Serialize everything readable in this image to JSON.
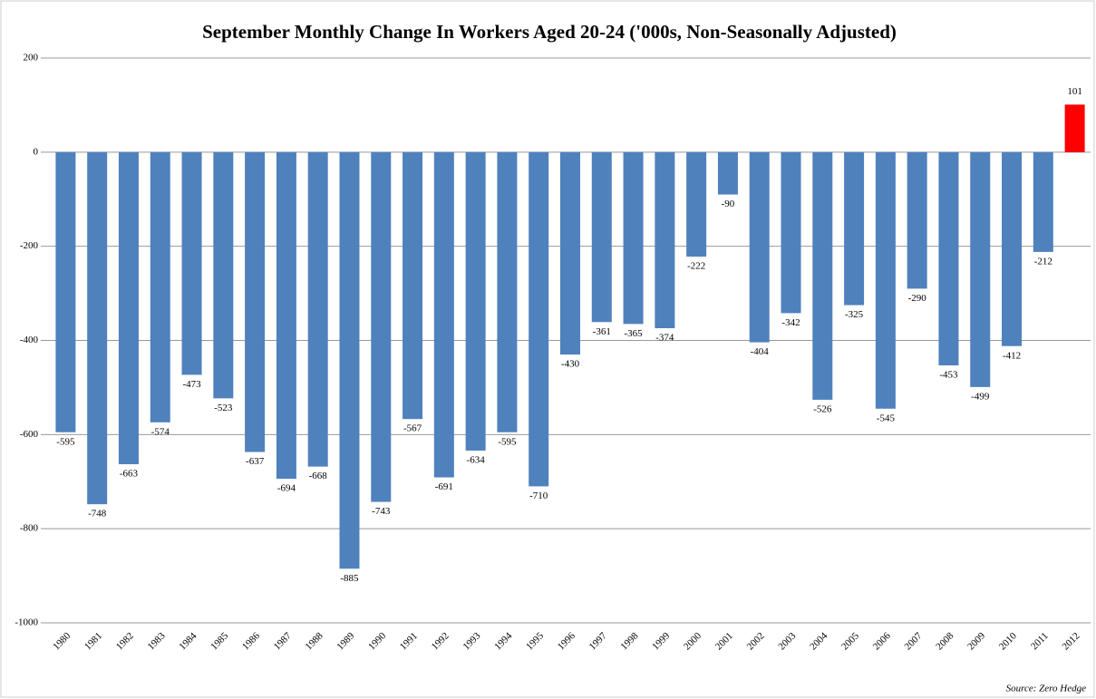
{
  "chart_data": {
    "type": "bar",
    "title": "September Monthly Change In Workers Aged 20-24 ('000s, Non-Seasonally Adjusted)",
    "source": "Source: Zero Hedge",
    "categories": [
      "1980",
      "1981",
      "1982",
      "1983",
      "1984",
      "1985",
      "1986",
      "1987",
      "1988",
      "1989",
      "1990",
      "1991",
      "1992",
      "1993",
      "1994",
      "1995",
      "1996",
      "1997",
      "1998",
      "1999",
      "2000",
      "2001",
      "2002",
      "2003",
      "2004",
      "2005",
      "2006",
      "2007",
      "2008",
      "2009",
      "2010",
      "2011",
      "2012"
    ],
    "values": [
      -595,
      -748,
      -663,
      -574,
      -473,
      -523,
      -637,
      -694,
      -668,
      -885,
      -743,
      -567,
      -691,
      -634,
      -595,
      -710,
      -430,
      -361,
      -365,
      -374,
      -222,
      -90,
      -404,
      -342,
      -526,
      -325,
      -545,
      -290,
      -453,
      -499,
      -412,
      -212,
      101
    ],
    "colors": [
      "#4f81bd",
      "#4f81bd",
      "#4f81bd",
      "#4f81bd",
      "#4f81bd",
      "#4f81bd",
      "#4f81bd",
      "#4f81bd",
      "#4f81bd",
      "#4f81bd",
      "#4f81bd",
      "#4f81bd",
      "#4f81bd",
      "#4f81bd",
      "#4f81bd",
      "#4f81bd",
      "#4f81bd",
      "#4f81bd",
      "#4f81bd",
      "#4f81bd",
      "#4f81bd",
      "#4f81bd",
      "#4f81bd",
      "#4f81bd",
      "#4f81bd",
      "#4f81bd",
      "#4f81bd",
      "#4f81bd",
      "#4f81bd",
      "#4f81bd",
      "#4f81bd",
      "#4f81bd",
      "#ff0000"
    ],
    "ylim": [
      -1000,
      200
    ],
    "yticks": [
      200,
      0,
      -200,
      -400,
      -600,
      -800,
      -1000
    ],
    "grid": true
  }
}
